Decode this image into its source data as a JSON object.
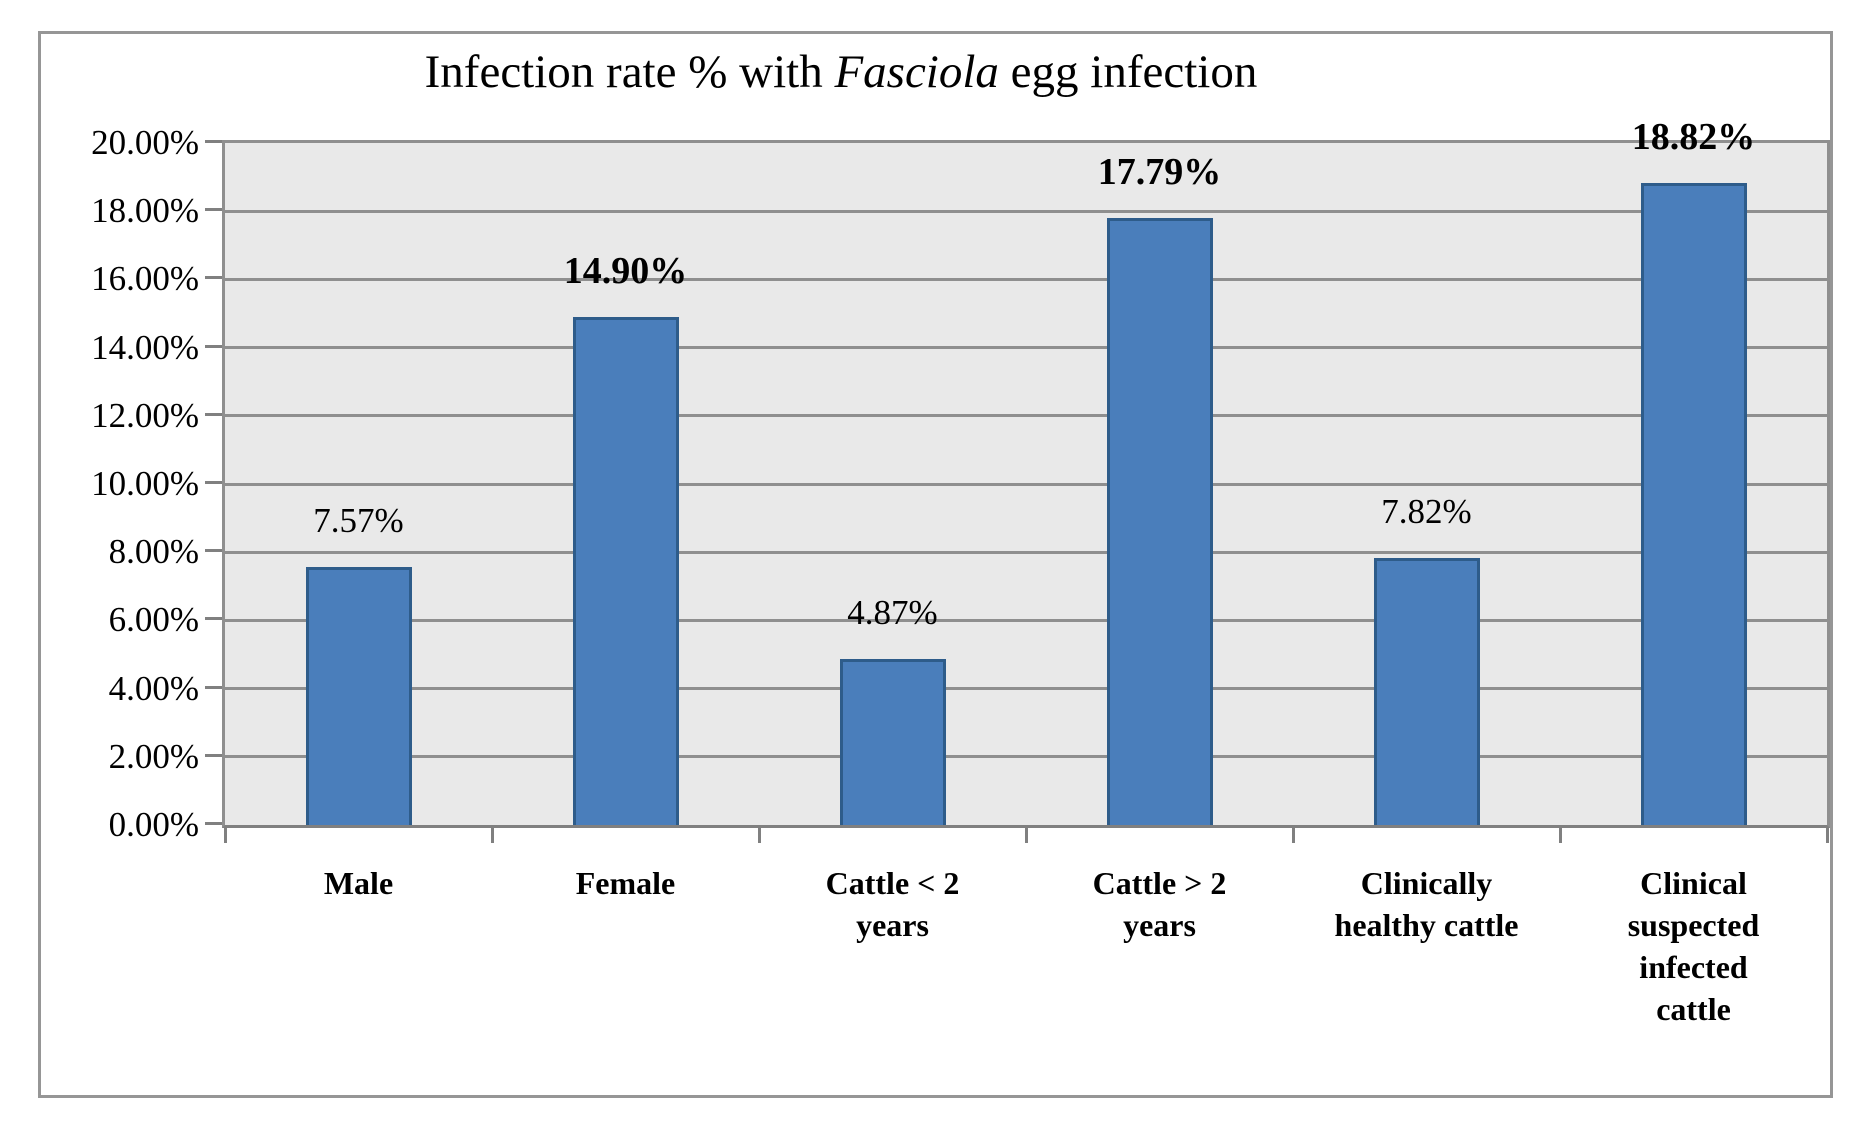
{
  "title": {
    "text": "Infection rate % with Fasciola egg infection",
    "parts": [
      {
        "text": "Infection rate % with ",
        "italic": false
      },
      {
        "text": "Fasciola",
        "italic": true
      },
      {
        "text": " egg infection",
        "italic": false
      }
    ]
  },
  "y_axis": {
    "ticks": [
      "20.00%",
      "18.00%",
      "16.00%",
      "14.00%",
      "12.00%",
      "10.00%",
      "8.00%",
      "6.00%",
      "4.00%",
      "2.00%",
      "0.00%"
    ]
  },
  "chart_data": {
    "type": "bar",
    "title": "Infection rate % with Fasciola egg infection",
    "categories": [
      "Male",
      "Female",
      "Cattle < 2 years",
      "Cattle > 2 years",
      "Clinically healthy cattle",
      "Clinical suspected infected cattle"
    ],
    "category_lines": [
      [
        "Male"
      ],
      [
        "Female"
      ],
      [
        "Cattle < 2",
        "years"
      ],
      [
        "Cattle > 2",
        "years"
      ],
      [
        "Clinically",
        "healthy cattle"
      ],
      [
        "Clinical",
        "suspected",
        "infected",
        "cattle"
      ]
    ],
    "values": [
      7.57,
      14.9,
      4.87,
      17.79,
      7.82,
      18.82
    ],
    "data_labels": [
      "7.57%",
      "14.90%",
      "4.87%",
      "17.79%",
      "7.82%",
      "18.82%"
    ],
    "data_label_bold": [
      false,
      true,
      false,
      true,
      false,
      true
    ],
    "xlabel": "",
    "ylabel": "",
    "ylim": [
      0,
      20
    ],
    "y_tick_step": 2,
    "grid": true,
    "legend": false,
    "colors": {
      "bar_fill": "#4A7EBB",
      "bar_border": "#2E5C8A",
      "plot_background": "#E9E9E9",
      "gridline": "#8F8F8F",
      "axis": "#808080",
      "frame_border": "#969696",
      "text": "#000000"
    }
  }
}
